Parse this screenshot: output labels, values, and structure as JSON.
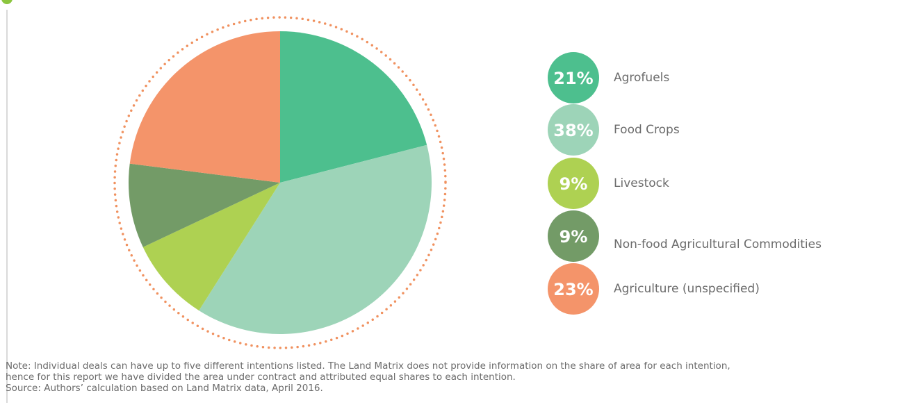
{
  "chart_data": {
    "type": "pie",
    "categories": [
      "Agrofuels",
      "Food Crops",
      "Livestock",
      "Non-food Agricultural Commodities",
      "Agriculture (unspecified)"
    ],
    "values": [
      21,
      38,
      9,
      9,
      23
    ],
    "value_labels": [
      "21%",
      "38%",
      "9%",
      "9%",
      "23%"
    ],
    "colors": [
      "#4dbf8e",
      "#9dd4b8",
      "#aed152",
      "#739b67",
      "#f4946a"
    ],
    "notes": [
      "Note: Individual deals can have up to five different intentions listed. The Land Matrix does not provide information on the share of area for each intention,",
      "hence for this report we have divided the area under contract and attributed equal shares to each intention.",
      "Source: Authors’ calculation based on Land Matrix data, April 2016."
    ]
  }
}
